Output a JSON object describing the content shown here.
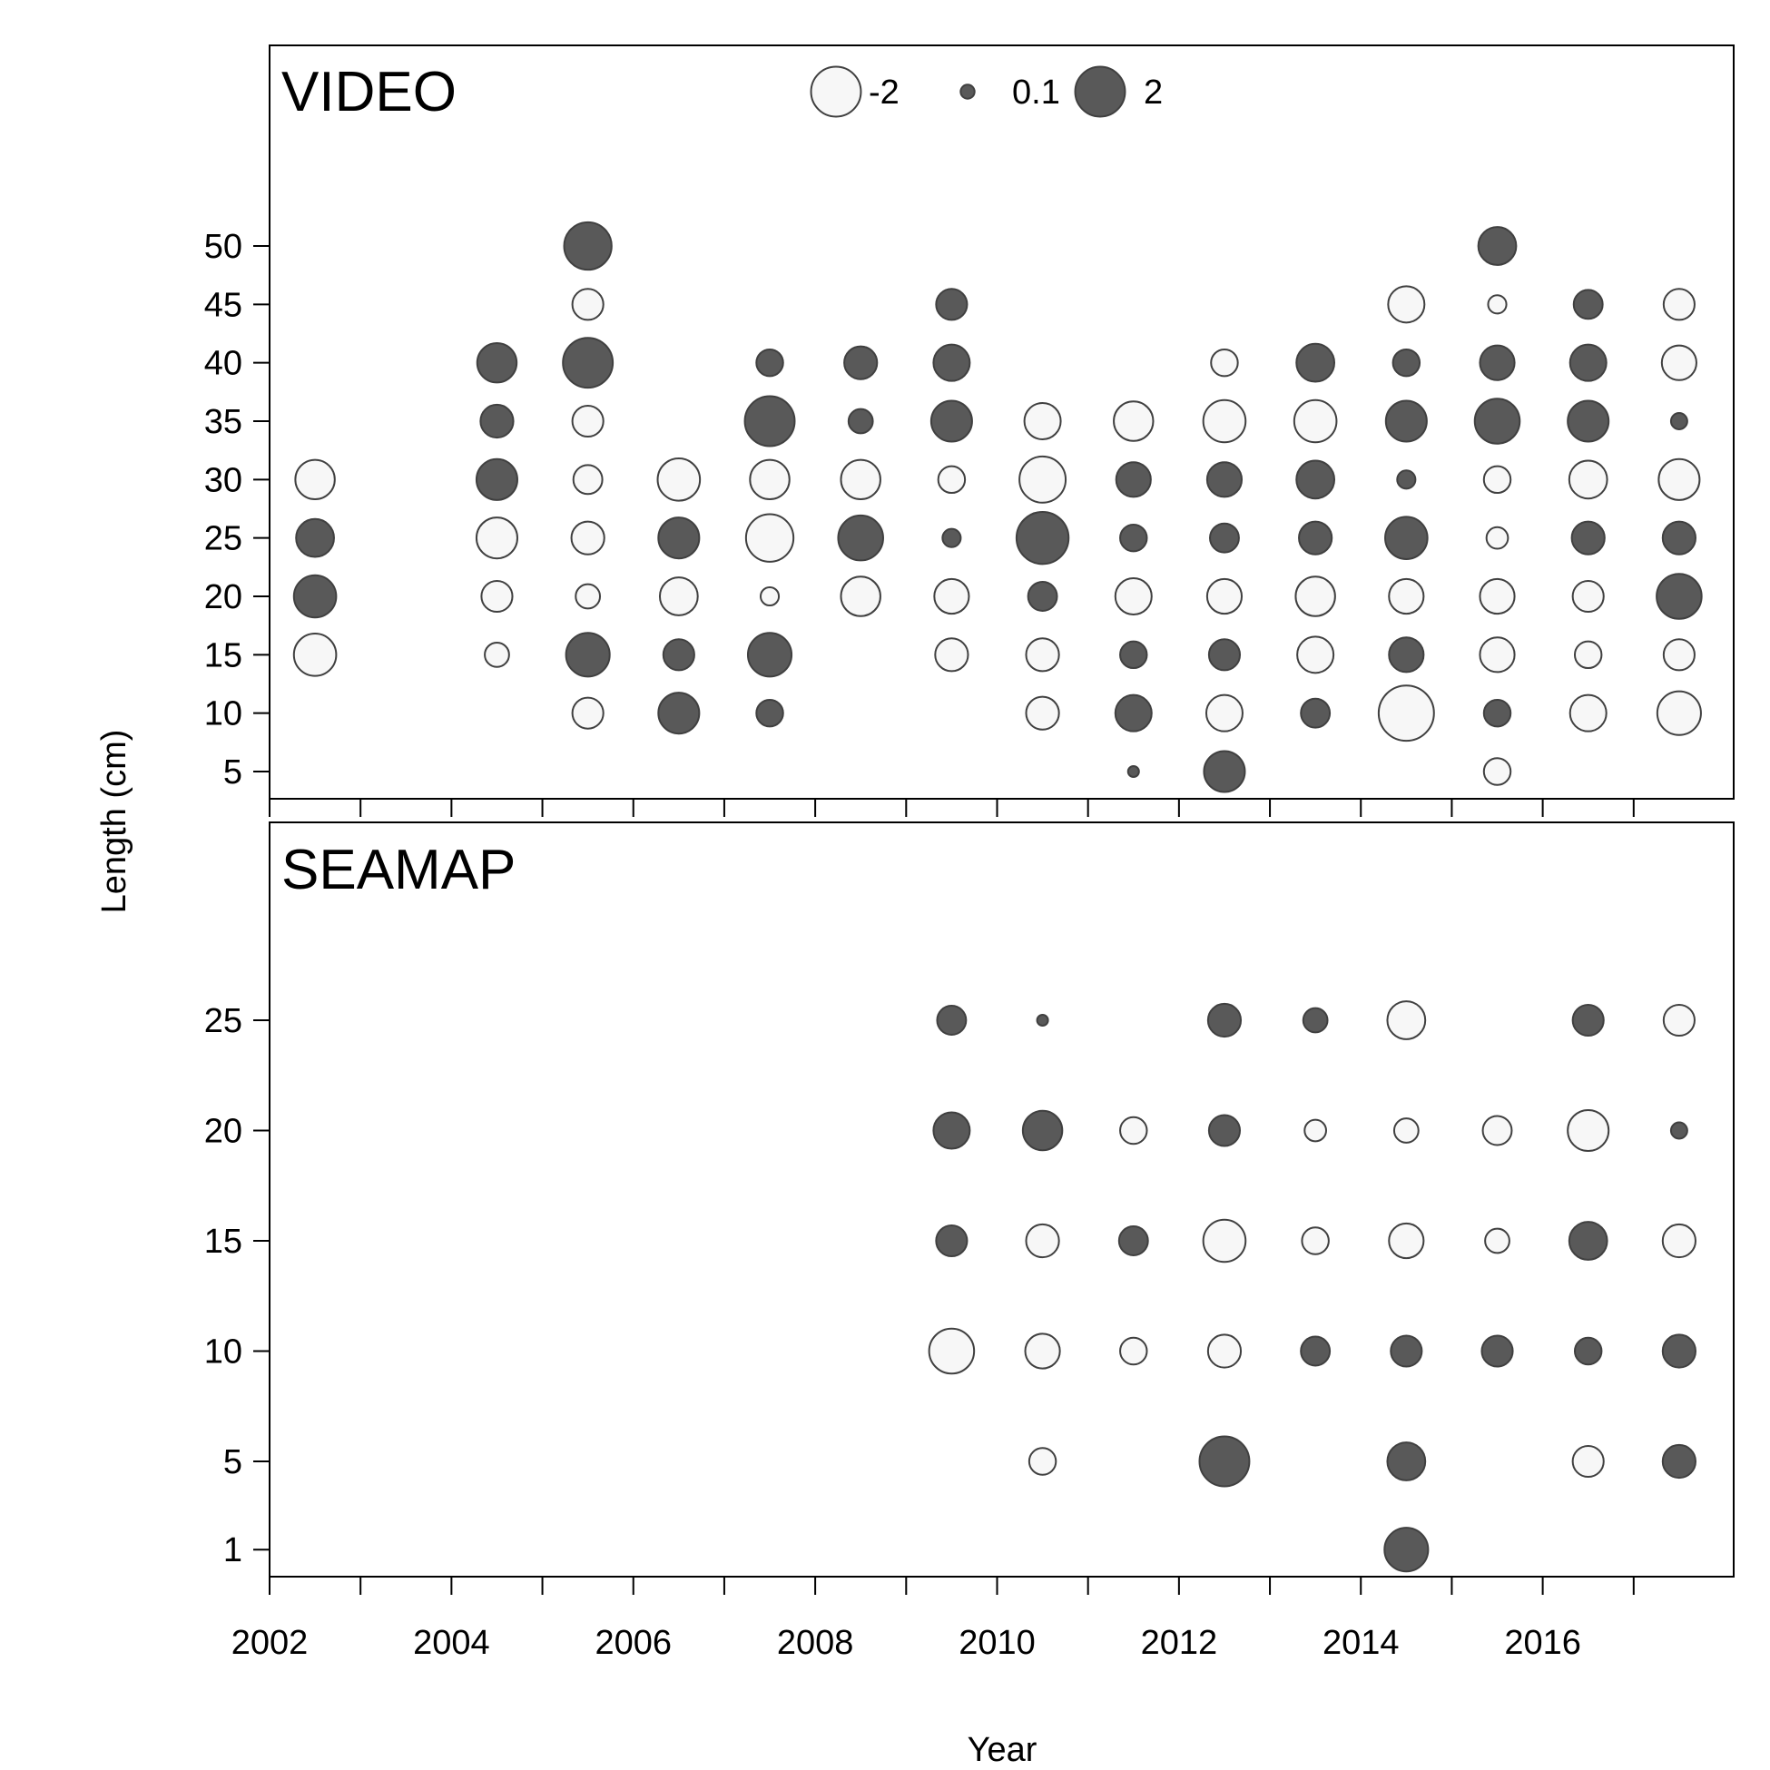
{
  "chart_data": {
    "type": "scatter",
    "subtype": "bubble",
    "xlabel": "Year",
    "ylabel": "Length (cm)",
    "xlim": [
      2002,
      2018.1
    ],
    "x_ticks_major": [
      2002,
      2004,
      2006,
      2008,
      2010,
      2012,
      2014,
      2016
    ],
    "x_ticks_minor": [
      2003,
      2005,
      2007,
      2009,
      2011,
      2013,
      2015,
      2017
    ],
    "colors": {
      "positive": "#595959",
      "negative": "#f7f7f7",
      "stroke": "#404040"
    },
    "legend": {
      "placement": "top-center",
      "entries": [
        {
          "label": "-2",
          "value": -2
        },
        {
          "label": "0.1",
          "value": 0.1
        },
        {
          "label": "2",
          "value": 2
        }
      ]
    },
    "panels": [
      {
        "title": "VIDEO",
        "y_ticks": [
          5,
          10,
          15,
          20,
          25,
          30,
          35,
          40,
          45,
          50
        ],
        "points": [
          [
            2002.5,
            30,
            -1.2
          ],
          [
            2002.5,
            25,
            1.1
          ],
          [
            2002.5,
            20,
            1.4
          ],
          [
            2002.5,
            15,
            -1.4
          ],
          [
            2004.5,
            40,
            1.2
          ],
          [
            2004.5,
            35,
            0.8
          ],
          [
            2004.5,
            30,
            1.3
          ],
          [
            2004.5,
            25,
            -1.3
          ],
          [
            2004.5,
            20,
            -0.7
          ],
          [
            2004.5,
            15,
            -0.4
          ],
          [
            2005.5,
            50,
            1.8
          ],
          [
            2005.5,
            45,
            -0.7
          ],
          [
            2005.5,
            40,
            2.0
          ],
          [
            2005.5,
            35,
            -0.7
          ],
          [
            2005.5,
            30,
            -0.6
          ],
          [
            2005.5,
            25,
            -0.8
          ],
          [
            2005.5,
            20,
            -0.4
          ],
          [
            2005.5,
            15,
            1.5
          ],
          [
            2005.5,
            10,
            -0.7
          ],
          [
            2006.5,
            30,
            -1.4
          ],
          [
            2006.5,
            25,
            1.3
          ],
          [
            2006.5,
            20,
            -1.1
          ],
          [
            2006.5,
            15,
            0.7
          ],
          [
            2006.5,
            10,
            1.3
          ],
          [
            2007.5,
            40,
            0.5
          ],
          [
            2007.5,
            35,
            2.0
          ],
          [
            2007.5,
            30,
            -1.2
          ],
          [
            2007.5,
            25,
            -1.8
          ],
          [
            2007.5,
            20,
            -0.2
          ],
          [
            2007.5,
            15,
            1.5
          ],
          [
            2007.5,
            10,
            0.5
          ],
          [
            2008.5,
            40,
            0.8
          ],
          [
            2008.5,
            35,
            0.4
          ],
          [
            2008.5,
            30,
            -1.2
          ],
          [
            2008.5,
            25,
            1.6
          ],
          [
            2008.5,
            20,
            -1.2
          ],
          [
            2009.5,
            45,
            0.7
          ],
          [
            2009.5,
            40,
            1.0
          ],
          [
            2009.5,
            35,
            1.3
          ],
          [
            2009.5,
            30,
            -0.5
          ],
          [
            2009.5,
            25,
            0.2
          ],
          [
            2009.5,
            20,
            -0.9
          ],
          [
            2009.5,
            15,
            -0.8
          ],
          [
            2010.5,
            35,
            -1.0
          ],
          [
            2010.5,
            30,
            -1.7
          ],
          [
            2010.5,
            25,
            2.2
          ],
          [
            2010.5,
            20,
            0.6
          ],
          [
            2010.5,
            15,
            -0.8
          ],
          [
            2010.5,
            10,
            -0.8
          ],
          [
            2011.5,
            35,
            -1.2
          ],
          [
            2011.5,
            30,
            0.9
          ],
          [
            2011.5,
            25,
            0.5
          ],
          [
            2011.5,
            20,
            -1.0
          ],
          [
            2011.5,
            15,
            0.5
          ],
          [
            2011.5,
            10,
            1.0
          ],
          [
            2011.5,
            5,
            0.05
          ],
          [
            2012.5,
            40,
            -0.5
          ],
          [
            2012.5,
            35,
            -1.4
          ],
          [
            2012.5,
            30,
            0.9
          ],
          [
            2012.5,
            25,
            0.6
          ],
          [
            2012.5,
            20,
            -0.9
          ],
          [
            2012.5,
            15,
            0.7
          ],
          [
            2012.5,
            10,
            -1.0
          ],
          [
            2012.5,
            5,
            1.3
          ],
          [
            2013.5,
            40,
            1.1
          ],
          [
            2013.5,
            35,
            -1.4
          ],
          [
            2013.5,
            30,
            1.1
          ],
          [
            2013.5,
            25,
            0.8
          ],
          [
            2013.5,
            20,
            -1.2
          ],
          [
            2013.5,
            15,
            -1.0
          ],
          [
            2013.5,
            10,
            0.6
          ],
          [
            2014.5,
            45,
            -1.0
          ],
          [
            2014.5,
            40,
            0.5
          ],
          [
            2014.5,
            35,
            1.3
          ],
          [
            2014.5,
            30,
            0.2
          ],
          [
            2014.5,
            25,
            1.4
          ],
          [
            2014.5,
            20,
            -0.9
          ],
          [
            2014.5,
            15,
            0.9
          ],
          [
            2014.5,
            10,
            -2.5
          ],
          [
            2015.5,
            50,
            1.1
          ],
          [
            2015.5,
            45,
            -0.2
          ],
          [
            2015.5,
            40,
            0.9
          ],
          [
            2015.5,
            35,
            1.6
          ],
          [
            2015.5,
            30,
            -0.5
          ],
          [
            2015.5,
            25,
            -0.3
          ],
          [
            2015.5,
            20,
            -0.9
          ],
          [
            2015.5,
            15,
            -0.9
          ],
          [
            2015.5,
            10,
            0.5
          ],
          [
            2015.5,
            5,
            -0.5
          ],
          [
            2016.5,
            45,
            0.6
          ],
          [
            2016.5,
            40,
            1.0
          ],
          [
            2016.5,
            35,
            1.3
          ],
          [
            2016.5,
            30,
            -1.1
          ],
          [
            2016.5,
            25,
            0.8
          ],
          [
            2016.5,
            20,
            -0.7
          ],
          [
            2016.5,
            15,
            -0.5
          ],
          [
            2016.5,
            10,
            -1.0
          ],
          [
            2017.5,
            45,
            -0.7
          ],
          [
            2017.5,
            40,
            -0.9
          ],
          [
            2017.5,
            35,
            0.15
          ],
          [
            2017.5,
            30,
            -1.3
          ],
          [
            2017.5,
            25,
            0.8
          ],
          [
            2017.5,
            20,
            1.6
          ],
          [
            2017.5,
            15,
            -0.7
          ],
          [
            2017.5,
            10,
            -1.5
          ]
        ]
      },
      {
        "title": "SEAMAP",
        "y_ticks": [
          1,
          5,
          10,
          15,
          20,
          25
        ],
        "points": [
          [
            2009.5,
            25,
            0.6
          ],
          [
            2009.5,
            20,
            1.0
          ],
          [
            2009.5,
            15,
            0.7
          ],
          [
            2009.5,
            10,
            -1.6
          ],
          [
            2010.5,
            25,
            0.05
          ],
          [
            2010.5,
            20,
            1.2
          ],
          [
            2010.5,
            15,
            -0.8
          ],
          [
            2010.5,
            10,
            -0.9
          ],
          [
            2010.5,
            5,
            -0.5
          ],
          [
            2011.5,
            20,
            -0.5
          ],
          [
            2011.5,
            15,
            0.6
          ],
          [
            2011.5,
            10,
            -0.5
          ],
          [
            2012.5,
            25,
            0.8
          ],
          [
            2012.5,
            20,
            0.7
          ],
          [
            2012.5,
            15,
            -1.4
          ],
          [
            2012.5,
            10,
            -0.8
          ],
          [
            2012.5,
            5,
            2.0
          ],
          [
            2013.5,
            25,
            0.4
          ],
          [
            2013.5,
            20,
            -0.3
          ],
          [
            2013.5,
            15,
            -0.5
          ],
          [
            2013.5,
            10,
            0.6
          ],
          [
            2014.5,
            25,
            -1.1
          ],
          [
            2014.5,
            20,
            -0.4
          ],
          [
            2014.5,
            15,
            -0.9
          ],
          [
            2014.5,
            10,
            0.7
          ],
          [
            2014.5,
            5,
            1.1
          ],
          [
            2014.5,
            1,
            1.5
          ],
          [
            2015.5,
            20,
            -0.6
          ],
          [
            2015.5,
            15,
            -0.4
          ],
          [
            2015.5,
            10,
            0.7
          ],
          [
            2016.5,
            25,
            0.7
          ],
          [
            2016.5,
            20,
            -1.3
          ],
          [
            2016.5,
            15,
            1.1
          ],
          [
            2016.5,
            10,
            0.5
          ],
          [
            2016.5,
            5,
            -0.7
          ],
          [
            2017.5,
            25,
            -0.7
          ],
          [
            2017.5,
            20,
            0.15
          ],
          [
            2017.5,
            15,
            -0.8
          ],
          [
            2017.5,
            10,
            0.8
          ],
          [
            2017.5,
            5,
            0.8
          ]
        ]
      }
    ]
  }
}
